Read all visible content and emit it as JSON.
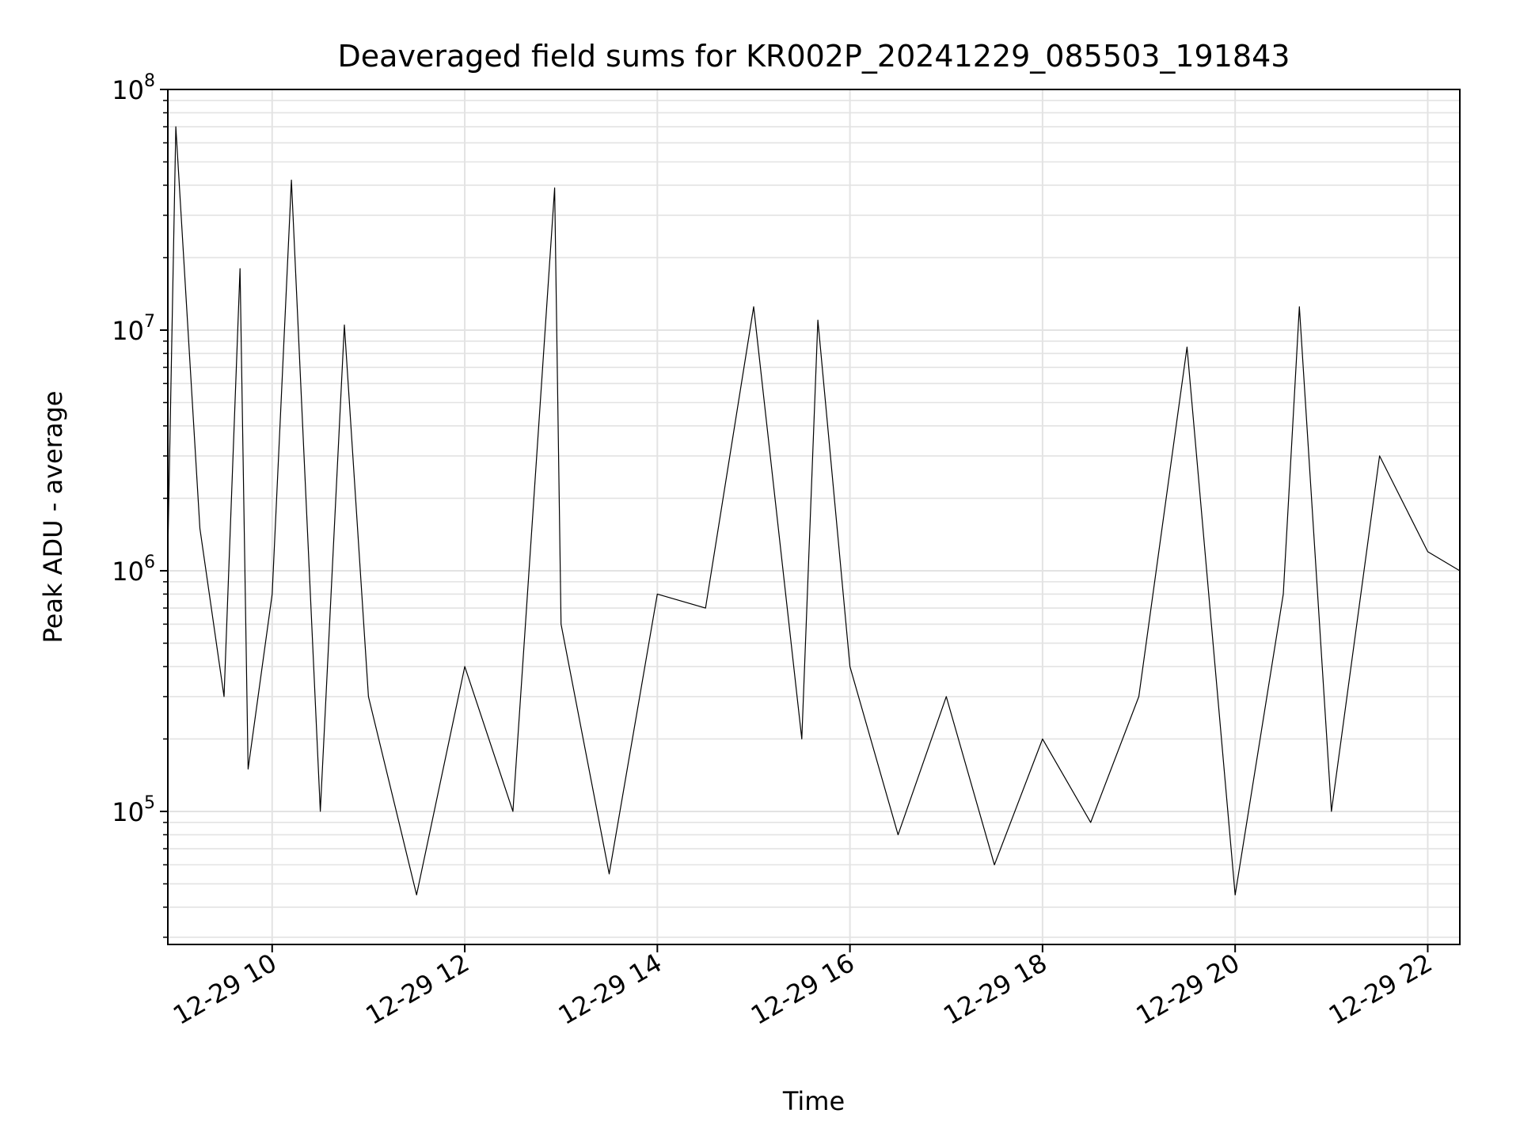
{
  "chart_data": {
    "type": "line",
    "title": "Deaveraged field sums for KR002P_20241229_085503_191843",
    "xlabel": "Time",
    "ylabel": "Peak ADU - average",
    "yscale": "log",
    "x_range": [
      "2024-12-29 08:55",
      "2024-12-29 22:20"
    ],
    "ylim": [
      28000,
      100000000
    ],
    "grid": true,
    "x_tick_labels": [
      "12-29 10",
      "12-29 12",
      "12-29 14",
      "12-29 16",
      "12-29 18",
      "12-29 20",
      "12-29 22"
    ],
    "y_tick_labels": [
      {
        "base": "10",
        "exp": "5"
      },
      {
        "base": "10",
        "exp": "6"
      },
      {
        "base": "10",
        "exp": "7"
      },
      {
        "base": "10",
        "exp": "8"
      }
    ],
    "line_color": "#000000",
    "series": [
      {
        "points": [
          [
            "2024-12-29 08:55",
            1200000
          ],
          [
            "2024-12-29 09:00",
            70000000
          ],
          [
            "2024-12-29 09:15",
            1500000
          ],
          [
            "2024-12-29 09:30",
            300000
          ],
          [
            "2024-12-29 09:40",
            18000000
          ],
          [
            "2024-12-29 09:45",
            150000
          ],
          [
            "2024-12-29 10:00",
            800000
          ],
          [
            "2024-12-29 10:12",
            42000000
          ],
          [
            "2024-12-29 10:30",
            100000
          ],
          [
            "2024-12-29 10:45",
            10500000
          ],
          [
            "2024-12-29 11:00",
            300000
          ],
          [
            "2024-12-29 11:30",
            45000
          ],
          [
            "2024-12-29 12:00",
            400000
          ],
          [
            "2024-12-29 12:30",
            100000
          ],
          [
            "2024-12-29 12:56",
            39000000
          ],
          [
            "2024-12-29 13:00",
            600000
          ],
          [
            "2024-12-29 13:30",
            55000
          ],
          [
            "2024-12-29 14:00",
            800000
          ],
          [
            "2024-12-29 14:30",
            700000
          ],
          [
            "2024-12-29 15:00",
            12500000
          ],
          [
            "2024-12-29 15:30",
            200000
          ],
          [
            "2024-12-29 15:40",
            11000000
          ],
          [
            "2024-12-29 16:00",
            400000
          ],
          [
            "2024-12-29 16:30",
            80000
          ],
          [
            "2024-12-29 17:00",
            300000
          ],
          [
            "2024-12-29 17:30",
            60000
          ],
          [
            "2024-12-29 18:00",
            200000
          ],
          [
            "2024-12-29 18:30",
            90000
          ],
          [
            "2024-12-29 19:00",
            300000
          ],
          [
            "2024-12-29 19:30",
            8500000
          ],
          [
            "2024-12-29 20:00",
            45000
          ],
          [
            "2024-12-29 20:30",
            800000
          ],
          [
            "2024-12-29 20:40",
            12500000
          ],
          [
            "2024-12-29 21:00",
            100000
          ],
          [
            "2024-12-29 21:30",
            3000000
          ],
          [
            "2024-12-29 22:00",
            1200000
          ],
          [
            "2024-12-29 22:20",
            1000000
          ]
        ]
      }
    ]
  }
}
